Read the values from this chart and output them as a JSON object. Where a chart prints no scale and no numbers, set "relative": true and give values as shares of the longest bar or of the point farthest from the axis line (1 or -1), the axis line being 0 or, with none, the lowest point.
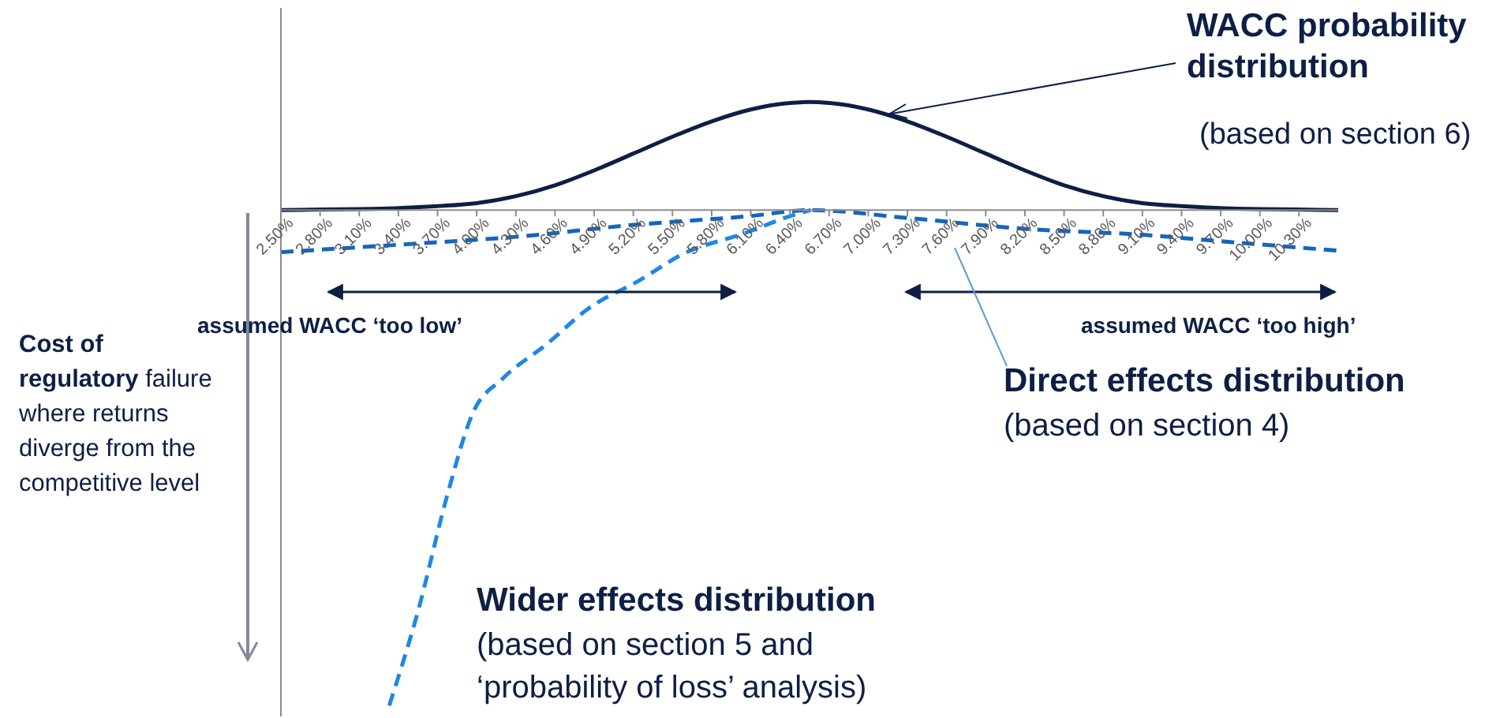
{
  "chart_data": {
    "type": "line",
    "relative": true,
    "ylabel": "Cost of regulatory failure where returns diverge from the competitive level",
    "xlim": [
      2.5,
      10.6
    ],
    "xticks": [
      {
        "value": 2.5,
        "label": "2.50%"
      },
      {
        "value": 2.8,
        "label": "2.80%"
      },
      {
        "value": 3.1,
        "label": "3.10%"
      },
      {
        "value": 3.4,
        "label": "3.40%"
      },
      {
        "value": 3.7,
        "label": "3.70%"
      },
      {
        "value": 4.0,
        "label": "4.00%"
      },
      {
        "value": 4.3,
        "label": "4.30%"
      },
      {
        "value": 4.6,
        "label": "4.60%"
      },
      {
        "value": 4.9,
        "label": "4.90%"
      },
      {
        "value": 5.2,
        "label": "5.20%"
      },
      {
        "value": 5.5,
        "label": "5.50%"
      },
      {
        "value": 5.8,
        "label": "5.80%"
      },
      {
        "value": 6.1,
        "label": "6.10%"
      },
      {
        "value": 6.4,
        "label": "6.40%"
      },
      {
        "value": 6.7,
        "label": "6.70%"
      },
      {
        "value": 7.0,
        "label": "7.00%"
      },
      {
        "value": 7.3,
        "label": "7.30%"
      },
      {
        "value": 7.6,
        "label": "7.60%"
      },
      {
        "value": 7.9,
        "label": "7.90%"
      },
      {
        "value": 8.2,
        "label": "8.20%"
      },
      {
        "value": 8.5,
        "label": "8.50%"
      },
      {
        "value": 8.8,
        "label": "8.80%"
      },
      {
        "value": 9.1,
        "label": "9.10%"
      },
      {
        "value": 9.4,
        "label": "9.40%"
      },
      {
        "value": 9.7,
        "label": "9.70%"
      },
      {
        "value": 10.0,
        "label": "10.00%"
      },
      {
        "value": 10.3,
        "label": "10.30%"
      }
    ],
    "series": [
      {
        "name": "WACC probability distribution",
        "color": "#0d1f45",
        "line_style": "solid",
        "x": [
          2.5,
          2.8,
          3.1,
          3.4,
          3.7,
          4.0,
          4.3,
          4.6,
          4.9,
          5.2,
          5.5,
          5.8,
          6.1,
          6.4,
          6.55,
          6.7,
          7.0,
          7.3,
          7.6,
          7.9,
          8.2,
          8.5,
          8.8,
          9.1,
          9.4,
          9.7,
          10.0,
          10.3,
          10.6
        ],
        "values": [
          0,
          0.001,
          0.002,
          0.004,
          0.008,
          0.014,
          0.028,
          0.05,
          0.08,
          0.114,
          0.148,
          0.179,
          0.203,
          0.216,
          0.218,
          0.216,
          0.203,
          0.179,
          0.148,
          0.114,
          0.08,
          0.05,
          0.028,
          0.014,
          0.008,
          0.004,
          0.002,
          0.001,
          0
        ]
      },
      {
        "name": "Direct effects distribution",
        "color": "#1565c0",
        "line_style": "dashed",
        "x": [
          2.5,
          3.4,
          4.3,
          5.2,
          6.1,
          6.55,
          7.3,
          8.2,
          9.1,
          9.7,
          10.6
        ],
        "values": [
          -0.085,
          -0.07,
          -0.054,
          -0.03,
          -0.012,
          0,
          -0.016,
          -0.038,
          -0.05,
          -0.063,
          -0.082
        ]
      },
      {
        "name": "Wider effects distribution",
        "color": "#1e88e5",
        "line_style": "dashed",
        "x": [
          3.33,
          3.55,
          3.77,
          3.97,
          4.2,
          4.54,
          4.85,
          5.26,
          5.57,
          6.05,
          6.44,
          6.56
        ],
        "values": [
          -1,
          -0.81,
          -0.58,
          -0.41,
          -0.34,
          -0.27,
          -0.2,
          -0.14,
          -0.09,
          -0.047,
          -0.009,
          0
        ]
      }
    ],
    "annotations": [
      "(based on section 6)",
      "(based on section 4)",
      "(based on section 5 and ‘probability of loss’ analysis)",
      "assumed WACC ‘too low’",
      "assumed WACC ‘too high’"
    ]
  }
}
